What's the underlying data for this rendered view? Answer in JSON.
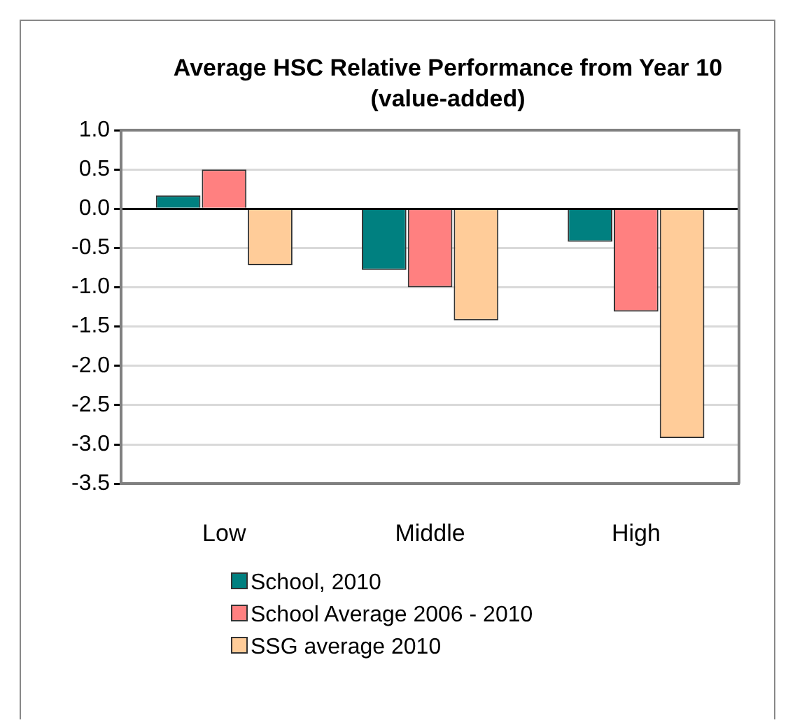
{
  "chart_data": {
    "type": "bar",
    "title": "Average HSC Relative Performance from Year 10 (value-added)",
    "categories": [
      "Low",
      "Middle",
      "High"
    ],
    "series": [
      {
        "name": "School, 2010",
        "color": "#008080",
        "values": [
          0.17,
          -0.78,
          -0.42
        ]
      },
      {
        "name": "School Average 2006 - 2010",
        "color": "#ff8080",
        "values": [
          0.5,
          -1.0,
          -1.31
        ]
      },
      {
        "name": "SSG average 2010",
        "color": "#ffcc99",
        "values": [
          -0.72,
          -1.42,
          -2.92
        ]
      }
    ],
    "ylim": [
      -3.5,
      1.0
    ],
    "yticks": [
      {
        "value": 1.0,
        "label": "1.0"
      },
      {
        "value": 0.5,
        "label": "0.5"
      },
      {
        "value": 0,
        "label": "0.0"
      },
      {
        "value": -0.5,
        "label": "-0.5"
      },
      {
        "value": -1.0,
        "label": "-1.0"
      },
      {
        "value": -1.5,
        "label": "-1.5"
      },
      {
        "value": -2.0,
        "label": "-2.0"
      },
      {
        "value": -2.5,
        "label": "-2.5"
      },
      {
        "value": -3.0,
        "label": "-3.0"
      },
      {
        "value": -3.5,
        "label": "-3.5"
      }
    ],
    "grid": "y",
    "legend": "bottom"
  }
}
